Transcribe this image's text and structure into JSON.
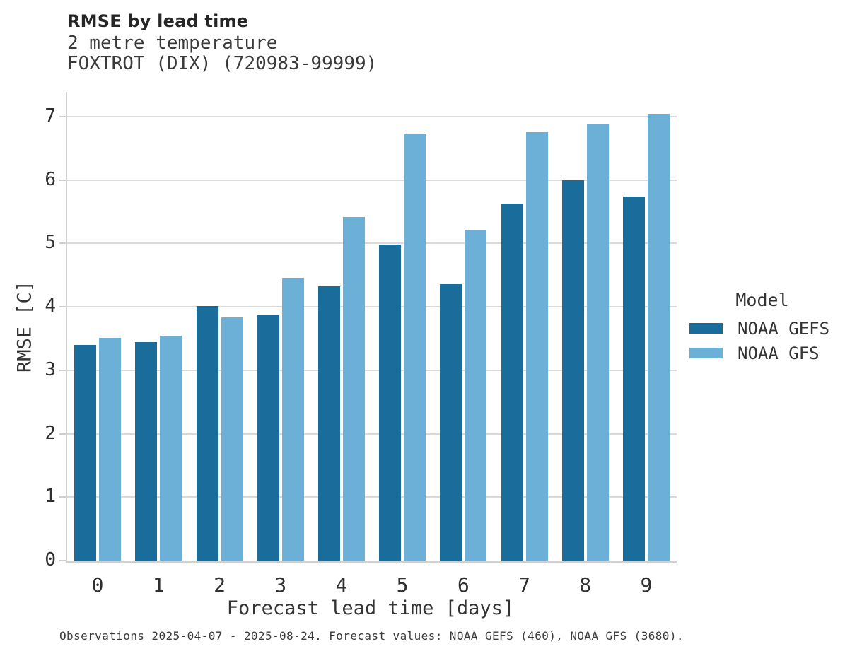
{
  "header": {
    "title": "RMSE by lead time",
    "subtitle_lines": [
      "2 metre temperature",
      "FOXTROT (DIX) (720983-99999)"
    ]
  },
  "legend": {
    "title": "Model",
    "entries": [
      {
        "label": "NOAA GEFS",
        "color": "#1a6d9b"
      },
      {
        "label": "NOAA GFS",
        "color": "#6cb0d8"
      }
    ]
  },
  "footer": {
    "note": "Observations 2025-04-07 - 2025-08-24. Forecast values: NOAA GEFS (460), NOAA GFS (3680)."
  },
  "colors": {
    "noaa_gefs": "#1a6d9b",
    "noaa_gfs": "#6cb0d8",
    "gridline": "#d9d9d9",
    "axis_spine": "#d0d0d0",
    "text": "#2f2f2f"
  },
  "chart_data": {
    "type": "bar",
    "title": "RMSE by lead time",
    "subtitle": [
      "2 metre temperature",
      "FOXTROT (DIX) (720983-99999)"
    ],
    "xlabel": "Forecast lead time [days]",
    "ylabel": "RMSE [C]",
    "categories": [
      0,
      1,
      2,
      3,
      4,
      5,
      6,
      7,
      8,
      9
    ],
    "series": [
      {
        "name": "NOAA GEFS",
        "color": "#1a6d9b",
        "values": [
          3.4,
          3.44,
          4.01,
          3.87,
          4.33,
          4.98,
          4.36,
          5.63,
          6.0,
          5.74
        ]
      },
      {
        "name": "NOAA GFS",
        "color": "#6cb0d8",
        "values": [
          3.51,
          3.54,
          3.84,
          4.46,
          5.42,
          6.72,
          5.22,
          6.76,
          6.88,
          7.04
        ]
      }
    ],
    "yticks": [
      0,
      1,
      2,
      3,
      4,
      5,
      6,
      7
    ],
    "ylim": [
      0,
      7.39
    ],
    "grid": true,
    "legend_title": "Model",
    "legend_position": "right"
  }
}
